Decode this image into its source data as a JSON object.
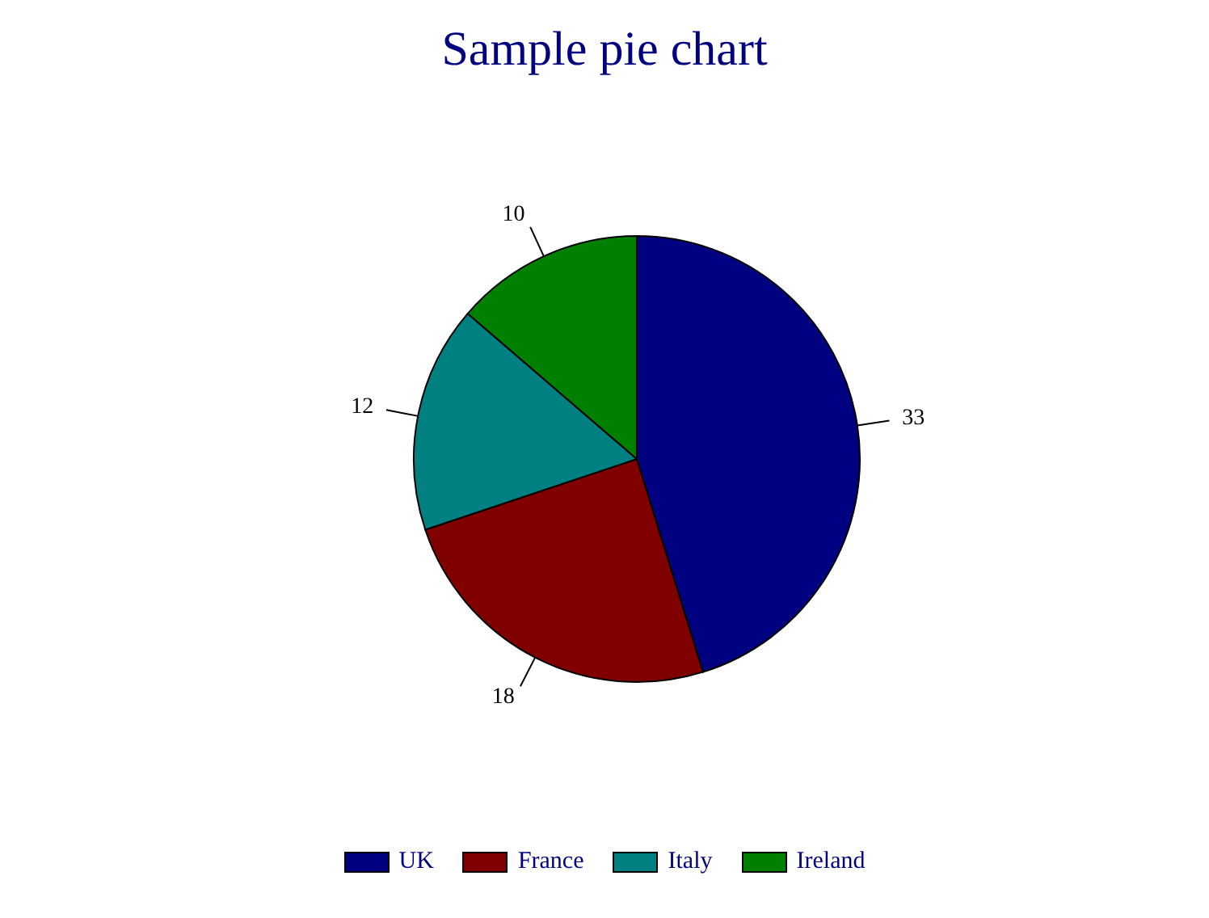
{
  "chart_data": {
    "type": "pie",
    "title": "Sample pie chart",
    "categories": [
      "UK",
      "France",
      "Italy",
      "Ireland"
    ],
    "values": [
      33,
      18,
      12,
      10
    ],
    "colors": [
      "#000080",
      "#800000",
      "#008080",
      "#008000"
    ],
    "data_labels": true,
    "legend": "bottom"
  }
}
